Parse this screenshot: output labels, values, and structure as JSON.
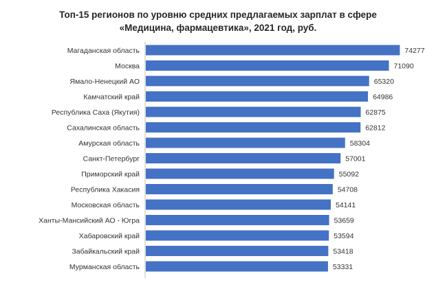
{
  "chart_data": {
    "type": "bar",
    "orientation": "horizontal",
    "title_lines": [
      "Топ-15 регионов по уровню средних предлагаемых зарплат в сфере",
      "«Медицина, фармацевтика», 2021 год, руб."
    ],
    "categories": [
      "Магаданская область",
      "Москва",
      "Ямало-Ненецкий АО",
      "Камчатский край",
      "Республика Саха (Якутия)",
      "Сахалинская область",
      "Амурская область",
      "Санкт-Петербург",
      "Приморский край",
      "Республика Хакасия",
      "Московская область",
      "Ханты-Мансийский АО - Югра",
      "Хабаровский край",
      "Забайкальский край",
      "Мурманская область"
    ],
    "values": [
      74277,
      71090,
      65320,
      64986,
      62875,
      62812,
      58304,
      57001,
      55092,
      54708,
      54141,
      53659,
      53594,
      53418,
      53331
    ],
    "xlim": [
      0,
      76000
    ],
    "grid": false,
    "legend": "none",
    "bar_color": "#4472C4",
    "axis_color": "#bfbfbf"
  }
}
